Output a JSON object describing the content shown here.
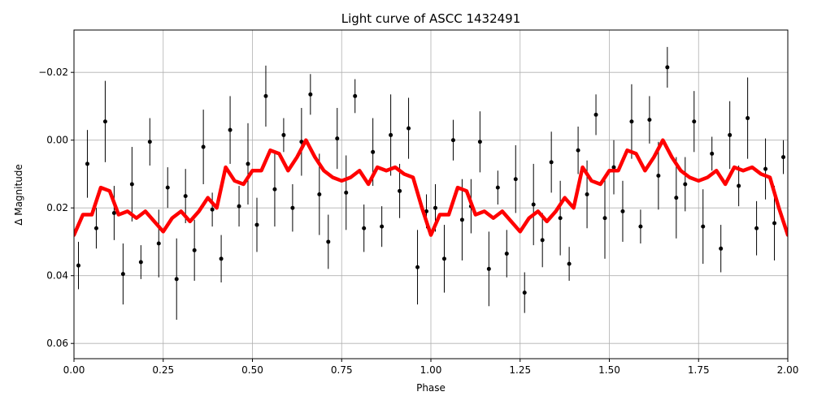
{
  "chart_data": {
    "type": "errorbar",
    "title": "Light curve of ASCC 1432491",
    "xlabel": "Phase",
    "ylabel": "Δ Magnitude",
    "xlim": [
      0,
      2
    ],
    "ylim": [
      -0.0325,
      0.0645
    ],
    "y_inverted": true,
    "grid": true,
    "xticks": [
      {
        "value": 0,
        "label": "0.00"
      },
      {
        "value": 0.25,
        "label": "0.25"
      },
      {
        "value": 0.5,
        "label": "0.50"
      },
      {
        "value": 0.75,
        "label": "0.75"
      },
      {
        "value": 1,
        "label": "1.00"
      },
      {
        "value": 1.25,
        "label": "1.25"
      },
      {
        "value": 1.5,
        "label": "1.50"
      },
      {
        "value": 1.75,
        "label": "1.75"
      },
      {
        "value": 2,
        "label": "2.00"
      }
    ],
    "yticks": [
      {
        "value": -0.02,
        "label": "−0.02"
      },
      {
        "value": 0,
        "label": "0.00"
      },
      {
        "value": 0.02,
        "label": "0.02"
      },
      {
        "value": 0.04,
        "label": "0.04"
      },
      {
        "value": 0.06,
        "label": "0.06"
      }
    ],
    "series": [
      {
        "color": "#000000",
        "x": [
          0.0125,
          0.0375,
          0.0625,
          0.0875,
          0.1125,
          0.1375,
          0.1625,
          0.1875,
          0.2125,
          0.2375,
          0.2625,
          0.2875,
          0.3125,
          0.3375,
          0.3625,
          0.3875,
          0.4125,
          0.4375,
          0.4625,
          0.4875,
          0.5125,
          0.5375,
          0.5625,
          0.5875,
          0.6125,
          0.6375,
          0.6625,
          0.6875,
          0.7125,
          0.7375,
          0.7625,
          0.7875,
          0.8125,
          0.8375,
          0.8625,
          0.8875,
          0.9125,
          0.9375,
          0.9625,
          0.9875,
          1.0125,
          1.0375,
          1.0625,
          1.0875,
          1.1125,
          1.1375,
          1.1625,
          1.1875,
          1.2125,
          1.2375,
          1.2625,
          1.2875,
          1.3125,
          1.3375,
          1.3625,
          1.3875,
          1.4125,
          1.4375,
          1.4625,
          1.4875,
          1.5125,
          1.5375,
          1.5625,
          1.5875,
          1.6125,
          1.6375,
          1.6625,
          1.6875,
          1.7125,
          1.7375,
          1.7625,
          1.7875,
          1.8125,
          1.8375,
          1.8625,
          1.8875,
          1.9125,
          1.9375,
          1.9625,
          1.9875
        ],
        "values": [
          0.037,
          0.007,
          0.026,
          -0.0055,
          0.0215,
          0.0395,
          0.013,
          0.036,
          0.0005,
          0.0305,
          0.014,
          0.041,
          0.0165,
          0.0325,
          0.002,
          0.0205,
          0.035,
          -0.003,
          0.0195,
          0.007,
          0.025,
          -0.013,
          0.0145,
          -0.0015,
          0.02,
          0.0005,
          -0.0135,
          0.016,
          0.03,
          -0.0005,
          0.0155,
          -0.013,
          0.026,
          0.0035,
          0.0255,
          -0.0015,
          0.015,
          -0.0035,
          0.0375,
          0.021,
          0.02,
          0.035,
          0,
          0.0235,
          0.0195,
          0.0005,
          0.038,
          0.014,
          0.0335,
          0.0115,
          0.045,
          0.019,
          0.0295,
          0.0065,
          0.023,
          0.0365,
          0.003,
          0.016,
          -0.0075,
          0.023,
          0.008,
          0.021,
          -0.0055,
          0.0255,
          -0.006,
          0.0105,
          -0.0215,
          0.017,
          0.013,
          -0.0055,
          0.0255,
          0.004,
          0.032,
          -0.0015,
          0.0135,
          -0.0065,
          0.026,
          0.0085,
          0.0245,
          0.005
        ],
        "errors": [
          0.007,
          0.01,
          0.006,
          0.012,
          0.008,
          0.009,
          0.011,
          0.005,
          0.007,
          0.01,
          0.006,
          0.012,
          0.008,
          0.009,
          0.011,
          0.005,
          0.007,
          0.01,
          0.006,
          0.012,
          0.008,
          0.009,
          0.011,
          0.005,
          0.007,
          0.01,
          0.006,
          0.012,
          0.008,
          0.009,
          0.011,
          0.005,
          0.007,
          0.01,
          0.006,
          0.012,
          0.008,
          0.009,
          0.011,
          0.005,
          0.007,
          0.01,
          0.006,
          0.012,
          0.008,
          0.009,
          0.011,
          0.005,
          0.007,
          0.01,
          0.006,
          0.012,
          0.008,
          0.009,
          0.011,
          0.005,
          0.007,
          0.01,
          0.006,
          0.012,
          0.008,
          0.009,
          0.011,
          0.005,
          0.007,
          0.01,
          0.006,
          0.012,
          0.008,
          0.009,
          0.011,
          0.005,
          0.007,
          0.01,
          0.006,
          0.012,
          0.008,
          0.009,
          0.011,
          0.005
        ]
      },
      {
        "color": "#ff0000",
        "x": [
          0,
          0.025,
          0.05,
          0.075,
          0.1,
          0.125,
          0.15,
          0.175,
          0.2,
          0.225,
          0.25,
          0.275,
          0.3,
          0.325,
          0.35,
          0.375,
          0.4,
          0.425,
          0.45,
          0.475,
          0.5,
          0.525,
          0.55,
          0.575,
          0.6,
          0.625,
          0.65,
          0.675,
          0.7,
          0.725,
          0.75,
          0.775,
          0.8,
          0.825,
          0.85,
          0.875,
          0.9,
          0.925,
          0.95,
          0.975,
          1,
          1.025,
          1.05,
          1.075,
          1.1,
          1.125,
          1.15,
          1.175,
          1.2,
          1.225,
          1.25,
          1.275,
          1.3,
          1.325,
          1.35,
          1.375,
          1.4,
          1.425,
          1.45,
          1.475,
          1.5,
          1.525,
          1.55,
          1.575,
          1.6,
          1.625,
          1.65,
          1.675,
          1.7,
          1.725,
          1.75,
          1.775,
          1.8,
          1.825,
          1.85,
          1.875,
          1.9,
          1.925,
          1.95,
          1.975,
          2
        ],
        "values": [
          0.028,
          0.022,
          0.022,
          0.014,
          0.015,
          0.022,
          0.021,
          0.023,
          0.021,
          0.024,
          0.027,
          0.023,
          0.021,
          0.024,
          0.021,
          0.017,
          0.02,
          0.008,
          0.012,
          0.013,
          0.009,
          0.009,
          0.003,
          0.004,
          0.009,
          0.005,
          0,
          0.005,
          0.009,
          0.011,
          0.012,
          0.011,
          0.009,
          0.013,
          0.008,
          0.009,
          0.008,
          0.01,
          0.011,
          0.02,
          0.028,
          0.022,
          0.022,
          0.014,
          0.015,
          0.022,
          0.021,
          0.023,
          0.021,
          0.024,
          0.027,
          0.023,
          0.021,
          0.024,
          0.021,
          0.017,
          0.02,
          0.008,
          0.012,
          0.013,
          0.009,
          0.009,
          0.003,
          0.004,
          0.009,
          0.005,
          0,
          0.005,
          0.009,
          0.011,
          0.012,
          0.011,
          0.009,
          0.013,
          0.008,
          0.009,
          0.008,
          0.01,
          0.011,
          0.02,
          0.028
        ]
      }
    ]
  }
}
